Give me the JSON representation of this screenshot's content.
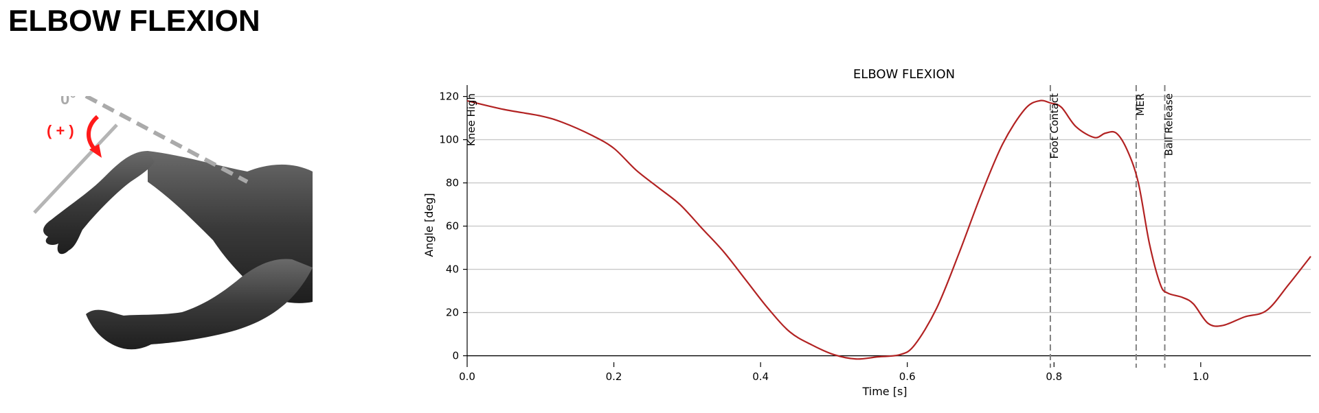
{
  "page": {
    "title": "ELBOW FLEXION"
  },
  "illustration": {
    "zero_label": "0°",
    "positive_label": "( + )"
  },
  "chart_data": {
    "type": "line",
    "title": "ELBOW FLEXION",
    "xlabel": "Time [s]",
    "ylabel": "Angle [deg]",
    "xlim": [
      0.0,
      1.15
    ],
    "ylim": [
      -3,
      124
    ],
    "xticks": [
      0.0,
      0.2,
      0.4,
      0.6,
      0.8,
      1.0
    ],
    "xtick_labels": [
      "0.0",
      "0.2",
      "0.4",
      "0.6",
      "0.8",
      "1.0"
    ],
    "yticks": [
      0,
      20,
      40,
      60,
      80,
      100,
      120
    ],
    "ytick_labels": [
      "0",
      "20",
      "40",
      "60",
      "80",
      "100",
      "120"
    ],
    "grid": "horizontal",
    "line_color": "#b22222",
    "series": [
      {
        "x": [
          0.0,
          0.05,
          0.1,
          0.13,
          0.17,
          0.2,
          0.23,
          0.26,
          0.29,
          0.32,
          0.35,
          0.38,
          0.41,
          0.44,
          0.47,
          0.5,
          0.53,
          0.56,
          0.59,
          0.61,
          0.64,
          0.67,
          0.7,
          0.73,
          0.76,
          0.78,
          0.795,
          0.81,
          0.83,
          0.855,
          0.87,
          0.885,
          0.9,
          0.915,
          0.93,
          0.945,
          0.955,
          0.975,
          0.99,
          1.01,
          1.03,
          1.06,
          1.09,
          1.12,
          1.15
        ],
        "y": [
          118,
          114,
          111,
          108,
          102,
          96,
          86,
          78,
          70,
          59,
          48,
          35,
          22,
          11,
          5,
          0.5,
          -1.5,
          -0.5,
          0.5,
          5,
          22,
          47,
          74,
          98,
          114,
          118,
          117,
          115,
          106,
          101,
          103,
          103,
          95,
          80,
          52,
          33,
          29,
          27,
          24,
          15,
          14,
          18,
          21,
          33,
          46
        ]
      }
    ],
    "events": [
      {
        "label": "Knee High",
        "x": 0.0
      },
      {
        "label": "Foot Contact",
        "x": 0.795
      },
      {
        "label": "MER",
        "x": 0.912
      },
      {
        "label": "Ball Release",
        "x": 0.951
      }
    ]
  }
}
